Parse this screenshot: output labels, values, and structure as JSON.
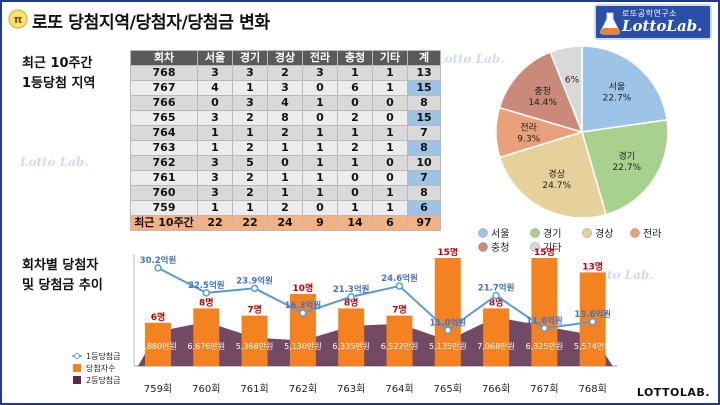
{
  "header": {
    "title": "로또 당첨지역/당첨자/당첨금 변화",
    "logo_sub": "로또공학연구소",
    "logo_main": "LottoLab."
  },
  "left_labels": {
    "region_line1": "최근 10주간",
    "region_line2": "1등당첨 지역",
    "trend_line1": "회차별 당첨자",
    "trend_line2": "및 당첨금 추이"
  },
  "watermark": "Lotto Lab.",
  "footer": "LOTTOLAB.",
  "colors": {
    "seoul": "#9dc3e6",
    "gyeonggi": "#a9d18e",
    "gyeongsang": "#e6d19a",
    "jeolla": "#e8a07a",
    "chungcheong": "#c98a7a",
    "other": "#d9d9d9",
    "first_prize": "#4472c4",
    "winners": "#f58220",
    "second_prize": "#5b2a4a"
  },
  "region_table": {
    "headers": [
      "회차",
      "서울",
      "경기",
      "경상",
      "전라",
      "충청",
      "기타",
      "계"
    ],
    "rows": [
      [
        "768",
        "3",
        "3",
        "2",
        "3",
        "1",
        "1",
        "13"
      ],
      [
        "767",
        "4",
        "1",
        "3",
        "0",
        "6",
        "1",
        "15"
      ],
      [
        "766",
        "0",
        "3",
        "4",
        "1",
        "0",
        "0",
        "8"
      ],
      [
        "765",
        "3",
        "2",
        "8",
        "0",
        "2",
        "0",
        "15"
      ],
      [
        "764",
        "1",
        "1",
        "2",
        "1",
        "1",
        "1",
        "7"
      ],
      [
        "763",
        "1",
        "2",
        "1",
        "1",
        "2",
        "1",
        "8"
      ],
      [
        "762",
        "3",
        "5",
        "0",
        "1",
        "1",
        "0",
        "10"
      ],
      [
        "761",
        "3",
        "2",
        "1",
        "1",
        "0",
        "0",
        "7"
      ],
      [
        "760",
        "3",
        "2",
        "1",
        "1",
        "0",
        "1",
        "8"
      ],
      [
        "759",
        "1",
        "1",
        "2",
        "0",
        "1",
        "1",
        "6"
      ]
    ],
    "sum_row": [
      "최근 10주간",
      "22",
      "22",
      "24",
      "9",
      "14",
      "6",
      "97"
    ]
  },
  "chart_data": [
    {
      "type": "pie",
      "labels": [
        "서울",
        "경기",
        "경상",
        "전라",
        "충청",
        "기타"
      ],
      "values": [
        22.7,
        22.7,
        24.7,
        9.3,
        14.4,
        6
      ],
      "value_labels": [
        "22.7%",
        "22.7%",
        "24.7%",
        "9.3%",
        "14.4%",
        "6%"
      ],
      "legend": [
        "서울",
        "경기",
        "경상",
        "전라",
        "충청",
        "기타"
      ],
      "legend_placement": "bottom"
    },
    {
      "type": "bar",
      "categories": [
        "759회",
        "760회",
        "761회",
        "762회",
        "763회",
        "764회",
        "765회",
        "766회",
        "767회",
        "768회"
      ],
      "series": [
        {
          "name": "1등당첨금",
          "type": "line",
          "values": [
            30.2,
            22.5,
            23.9,
            16.3,
            21.3,
            24.6,
            11.0,
            21.7,
            11.6,
            13.6
          ],
          "labels": [
            "30.2억원",
            "22.5억원",
            "23.9억원",
            "16.3억원",
            "21.3억원",
            "24.6억원",
            "11.0억원",
            "21.7억원",
            "11.6억원",
            "13.6억원"
          ]
        },
        {
          "name": "당첨자수",
          "type": "bar",
          "values": [
            6,
            8,
            7,
            10,
            8,
            7,
            15,
            8,
            15,
            13
          ],
          "labels": [
            "6명",
            "8명",
            "7명",
            "10명",
            "8명",
            "7명",
            "15명",
            "8명",
            "15명",
            "13명"
          ]
        },
        {
          "name": "2등당첨금",
          "type": "area",
          "values": [
            5880,
            6676,
            5368,
            5130,
            6335,
            6522,
            5135,
            7068,
            6325,
            5574
          ],
          "labels": [
            "5,880만원",
            "6,676만원",
            "5,368만원",
            "5,130만원",
            "6,335만원",
            "6,522만원",
            "5,135만원",
            "7,068만원",
            "6,325만원",
            "5,574만원"
          ]
        }
      ],
      "legend_placement": "bottom-left",
      "grid": false
    }
  ]
}
